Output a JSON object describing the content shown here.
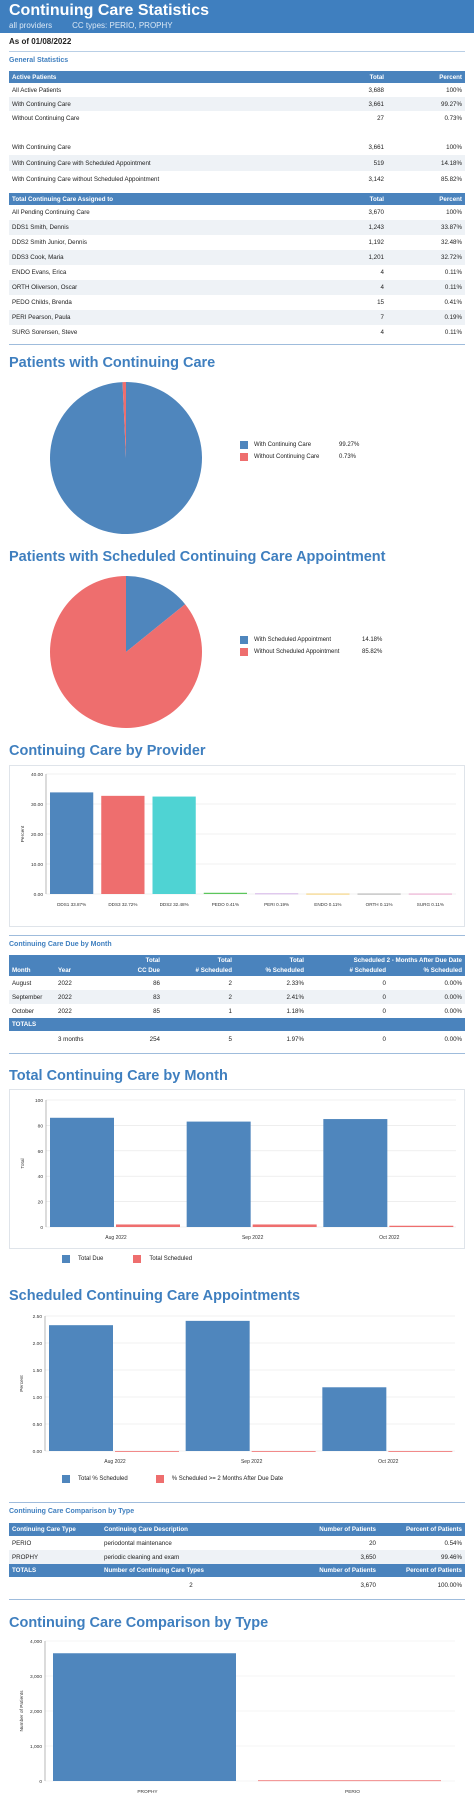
{
  "header": {
    "title": "Continuing Care Statistics",
    "providers": "all providers",
    "cc_types": "CC types: PERIO, PROPHY"
  },
  "as_of": "As of 01/08/2022",
  "general": {
    "title": "General Statistics",
    "table1": {
      "headers": [
        "Active Patients",
        "Total",
        "Percent"
      ],
      "rows": [
        [
          "All Active Patients",
          "3,688",
          "100%"
        ],
        [
          "With Continuing Care",
          "3,661",
          "99.27%"
        ],
        [
          "Without Continuing Care",
          "27",
          "0.73%"
        ]
      ]
    },
    "table2": {
      "rows": [
        [
          "With Continuing Care",
          "3,661",
          "100%"
        ],
        [
          "With Continuing Care with Scheduled Appointment",
          "519",
          "14.18%"
        ],
        [
          "With Continuing Care without Scheduled Appointment",
          "3,142",
          "85.82%"
        ]
      ]
    },
    "table3": {
      "headers": [
        "Total Continuing Care Assigned to",
        "Total",
        "Percent"
      ],
      "rows": [
        [
          "All Pending Continuing Care",
          "3,670",
          "100%"
        ],
        [
          "DDS1 Smith, Dennis",
          "1,243",
          "33.87%"
        ],
        [
          "DDS2 Smith Junior, Dennis",
          "1,192",
          "32.48%"
        ],
        [
          "DDS3 Cook, Maria",
          "1,201",
          "32.72%"
        ],
        [
          "ENDO Evans, Erica",
          "4",
          "0.11%"
        ],
        [
          "ORTH Oliverson, Oscar",
          "4",
          "0.11%"
        ],
        [
          "PEDO Childs, Brenda",
          "15",
          "0.41%"
        ],
        [
          "PERI Pearson, Paula",
          "7",
          "0.19%"
        ],
        [
          "SURG Sorensen, Steve",
          "4",
          "0.11%"
        ]
      ]
    }
  },
  "pie1": {
    "title": "Patients with Continuing Care",
    "legend": [
      {
        "label": "With Continuing Care",
        "pct": "99.27%"
      },
      {
        "label": "Without Continuing Care",
        "pct": "0.73%"
      }
    ]
  },
  "pie2": {
    "title": "Patients with Scheduled Continuing Care Appointment",
    "legend": [
      {
        "label": "With Scheduled Appointment",
        "pct": "14.18%"
      },
      {
        "label": "Without Scheduled Appointment",
        "pct": "85.82%"
      }
    ]
  },
  "provider_chart": {
    "title": "Continuing Care by Provider"
  },
  "due_by_month": {
    "title": "Continuing Care Due by Month",
    "h1": [
      "",
      "",
      "Total",
      "Total",
      "Total",
      "Scheduled 2 - Months After Due Date",
      ""
    ],
    "h2": [
      "Month",
      "Year",
      "CC Due",
      "# Scheduled",
      "% Scheduled",
      "# Scheduled",
      "% Scheduled"
    ],
    "rows": [
      [
        "August",
        "2022",
        "86",
        "2",
        "2.33%",
        "0",
        "0.00%"
      ],
      [
        "September",
        "2022",
        "83",
        "2",
        "2.41%",
        "0",
        "0.00%"
      ],
      [
        "October",
        "2022",
        "85",
        "1",
        "1.18%",
        "0",
        "0.00%"
      ]
    ],
    "totals_label": "TOTALS",
    "totals_row": [
      "",
      "3 months",
      "254",
      "5",
      "1.97%",
      "0",
      "0.00%"
    ]
  },
  "month_chart": {
    "title": "Total Continuing Care by Month",
    "legend": [
      "Total Due",
      "Total Scheduled"
    ]
  },
  "sched_chart": {
    "title": "Scheduled Continuing Care Appointments",
    "legend": [
      "Total % Scheduled",
      "% Scheduled >= 2 Months After Due Date"
    ]
  },
  "comparison": {
    "title": "Continuing Care Comparison by Type",
    "headers": [
      "Continuing Care Type",
      "Continuing Care Description",
      "Number of Patients",
      "Percent of Patients"
    ],
    "rows": [
      [
        "PERIO",
        "periodontal maintenance",
        "20",
        "0.54%"
      ],
      [
        "PROPHY",
        "periodic cleaning and exam",
        "3,650",
        "99.46%"
      ]
    ],
    "totals_headers": [
      "TOTALS",
      "Number of Continuing Care Types",
      "Number of Patients",
      "Percent of Patients"
    ],
    "totals_row": [
      "",
      "2",
      "3,670",
      "100.00%"
    ]
  },
  "type_chart": {
    "title": "Continuing Care Comparison by Type"
  },
  "chart_data": [
    {
      "type": "pie",
      "labels": [
        "With Continuing Care",
        "Without Continuing Care"
      ],
      "values": [
        99.27,
        0.73
      ],
      "colors": [
        "#4f86bd",
        "#ee6e6e"
      ]
    },
    {
      "type": "pie",
      "labels": [
        "With Scheduled Appointment",
        "Without Scheduled Appointment"
      ],
      "values": [
        14.18,
        85.82
      ],
      "colors": [
        "#4f86bd",
        "#ee6e6e"
      ]
    },
    {
      "type": "bar",
      "ylabel": "Percent",
      "ylim": [
        0,
        40
      ],
      "yticks": [
        "0.00",
        "10.00",
        "20.00",
        "30.00",
        "40.00"
      ],
      "categories": [
        "DDS1 33.87%",
        "DDS3 32.72%",
        "DDS2 32.48%",
        "PEDO 0.41%",
        "PERI 0.19%",
        "ENDO 0.11%",
        "ORTH 0.11%",
        "SURG 0.11%"
      ],
      "values": [
        33.87,
        32.72,
        32.48,
        0.41,
        0.19,
        0.11,
        0.11,
        0.11
      ],
      "colors": [
        "#4f86bd",
        "#ee6e6e",
        "#4fd3d3",
        "#5cc65c",
        "#c9a0e0",
        "#f2c14e",
        "#999999",
        "#e48fc0"
      ]
    },
    {
      "type": "bar",
      "ylabel": "Total",
      "ylim": [
        0,
        100
      ],
      "yticks": [
        "0",
        "20",
        "40",
        "60",
        "80",
        "100"
      ],
      "categories": [
        "Aug 2022",
        "Sep 2022",
        "Oct 2022"
      ],
      "series": [
        {
          "name": "Total Due",
          "values": [
            86,
            83,
            85
          ],
          "color": "#4f86bd"
        },
        {
          "name": "Total Scheduled",
          "values": [
            2,
            2,
            1
          ],
          "color": "#ee6e6e"
        }
      ]
    },
    {
      "type": "bar",
      "ylabel": "Percent",
      "ylim": [
        0,
        2.5
      ],
      "yticks": [
        "0.00",
        "0.50",
        "1.00",
        "1.50",
        "2.00",
        "2.50"
      ],
      "categories": [
        "Aug 2022",
        "Sep 2022",
        "Oct 2022"
      ],
      "series": [
        {
          "name": "Total % Scheduled",
          "values": [
            2.33,
            2.41,
            1.18
          ],
          "color": "#4f86bd"
        },
        {
          "name": "% Scheduled >= 2 Months After Due Date",
          "values": [
            0,
            0,
            0
          ],
          "color": "#ee6e6e"
        }
      ]
    },
    {
      "type": "bar",
      "ylabel": "Number of Patients",
      "ylim": [
        0,
        4000
      ],
      "yticks": [
        "0",
        "1,000",
        "2,000",
        "3,000",
        "4,000"
      ],
      "categories": [
        "PROPHY",
        "PERIO"
      ],
      "values": [
        3650,
        20
      ],
      "colors": [
        "#4f86bd",
        "#ee6e6e"
      ]
    }
  ]
}
